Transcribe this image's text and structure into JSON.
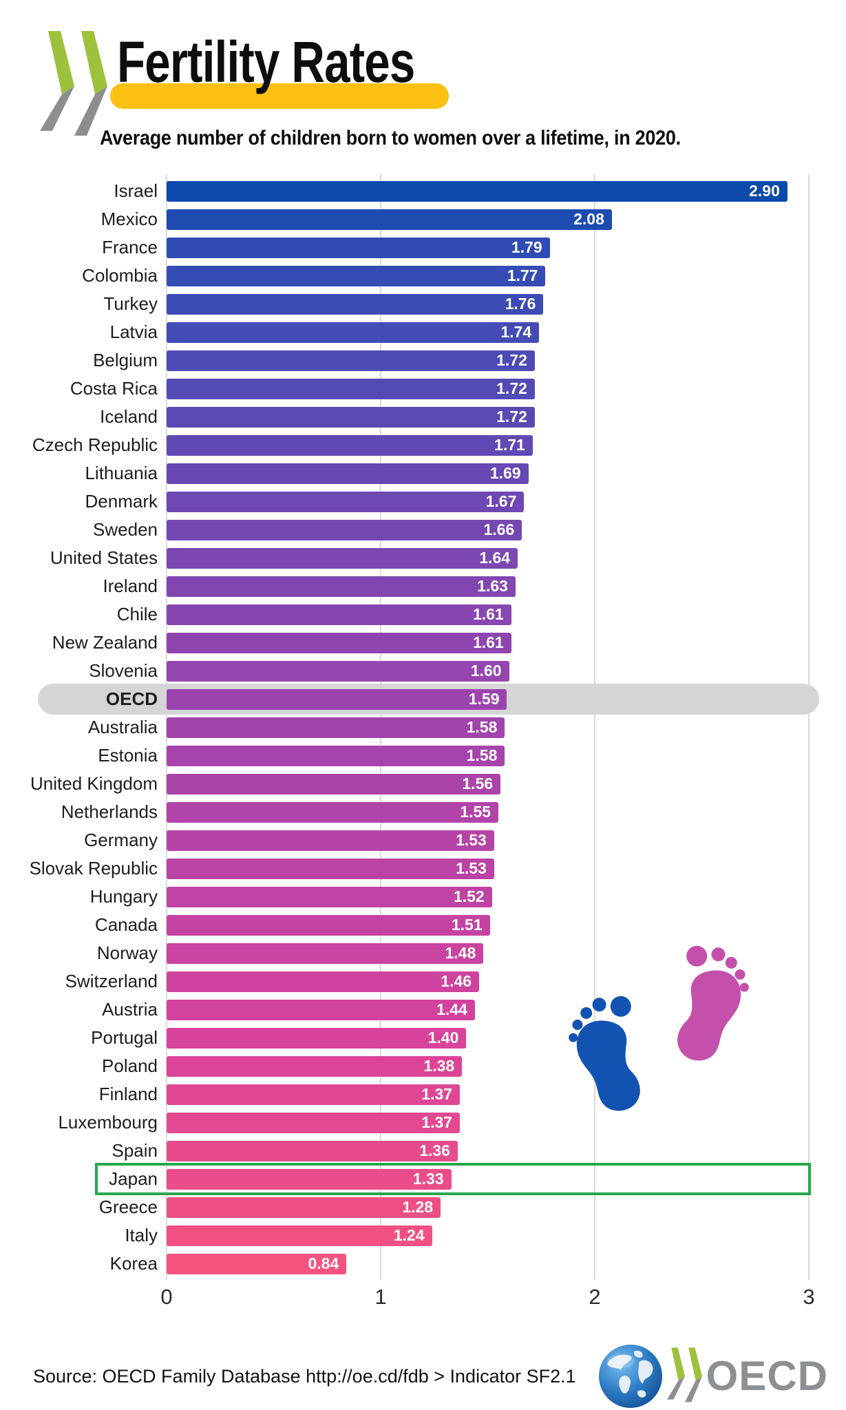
{
  "header": {
    "title": "Fertility Rates",
    "subtitle": "Average number of children born to women over a lifetime, in 2020.",
    "title_highlight_color": "#FDC113",
    "logo": {
      "name": "oecd-chevrons",
      "green": "#9CC23C",
      "gray": "#8C8E90"
    }
  },
  "chart_data": {
    "type": "bar",
    "orientation": "horizontal",
    "title": "Fertility Rates",
    "subtitle": "Average number of children born to women over a lifetime, in 2020.",
    "xlabel": "",
    "ylabel": "",
    "xlim": [
      0,
      3
    ],
    "x_ticks": [
      "0",
      "1",
      "2",
      "3"
    ],
    "grid": true,
    "value_labels": "inside bar end, white bold",
    "categories": [
      "Israel",
      "Mexico",
      "France",
      "Colombia",
      "Turkey",
      "Latvia",
      "Belgium",
      "Costa Rica",
      "Iceland",
      "Czech Republic",
      "Lithuania",
      "Denmark",
      "Sweden",
      "United States",
      "Ireland",
      "Chile",
      "New Zealand",
      "Slovenia",
      "OECD",
      "Australia",
      "Estonia",
      "United Kingdom",
      "Netherlands",
      "Germany",
      "Slovak Republic",
      "Hungary",
      "Canada",
      "Norway",
      "Switzerland",
      "Austria",
      "Portugal",
      "Poland",
      "Finland",
      "Luxembourg",
      "Spain",
      "Japan",
      "Greece",
      "Italy",
      "Korea"
    ],
    "values": [
      "2.90",
      "2.08",
      "1.79",
      "1.77",
      "1.76",
      "1.74",
      "1.72",
      "1.72",
      "1.72",
      "1.71",
      "1.69",
      "1.67",
      "1.66",
      "1.64",
      "1.63",
      "1.61",
      "1.61",
      "1.60",
      "1.59",
      "1.58",
      "1.58",
      "1.56",
      "1.55",
      "1.53",
      "1.53",
      "1.52",
      "1.51",
      "1.48",
      "1.46",
      "1.44",
      "1.40",
      "1.38",
      "1.37",
      "1.37",
      "1.36",
      "1.33",
      "1.28",
      "1.24",
      "0.84"
    ],
    "bar_color_stops": [
      {
        "t": 0.0,
        "color": "#0C4AAC"
      },
      {
        "t": 0.053,
        "color": "#2F4CB5"
      },
      {
        "t": 0.237,
        "color": "#6149B3"
      },
      {
        "t": 0.474,
        "color": "#9C44AE"
      },
      {
        "t": 0.789,
        "color": "#D8439B"
      },
      {
        "t": 1.0,
        "color": "#F4537E"
      }
    ],
    "annotations": {
      "gray_band_row": "OECD",
      "gray_band_color": "#D5D5D5",
      "green_box_row": "Japan",
      "green_box_color": "#27A74D"
    }
  },
  "decorations": {
    "footprints": {
      "name": "baby-footprints",
      "left_foot_color": "#1253B2",
      "right_foot_color": "#C450AB"
    }
  },
  "footer": {
    "source": "Source: OECD Family Database http://oe.cd/fdb > Indicator SF2.1",
    "logo_text": "OECD"
  }
}
